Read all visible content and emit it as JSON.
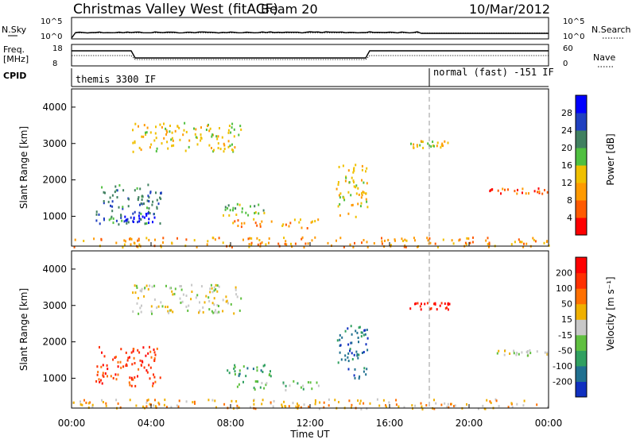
{
  "header": {
    "title": "Christmas Valley West (fitACF)",
    "beam": "Beam 20",
    "date": "10/Mar/2012"
  },
  "strips": {
    "nsky": {
      "label": "N.Sky",
      "ticks": [
        "10^5",
        "10^0"
      ]
    },
    "nsearch": {
      "label": "N.Search",
      "ticks": [
        "10^5",
        "10^0"
      ]
    },
    "freq": {
      "label_top": "Freq.",
      "label_bottom": "[MHz]",
      "ticks": [
        "18",
        "8"
      ]
    },
    "nave": {
      "label": "Nave",
      "ticks": [
        "60",
        "0"
      ]
    },
    "cpid": {
      "label": "CPID",
      "programs": [
        "themis 3300 IF",
        "normal (fast) -151 IF"
      ]
    }
  },
  "time_axis": {
    "label": "Time UT",
    "ticks": [
      "00:00",
      "04:00",
      "08:00",
      "12:00",
      "16:00",
      "20:00",
      "00:00"
    ]
  },
  "chart_data": [
    {
      "type": "heatmap",
      "panel": "power",
      "ylabel": "Slant Range [km]",
      "yticks": [
        1000,
        2000,
        3000,
        4000
      ],
      "xlim": [
        0,
        24
      ],
      "ylim": [
        180,
        4500
      ],
      "colorbar": {
        "label": "Power [dB]",
        "ticks": [
          "28",
          "24",
          "20",
          "16",
          "12",
          "8",
          "4"
        ],
        "colors": [
          "#ff0000",
          "#ff5a00",
          "#ff9a00",
          "#f0c000",
          "#50c040",
          "#408060",
          "#2040c0",
          "#0000ff"
        ]
      },
      "regions": [
        {
          "t": [
            1.2,
            4.5
          ],
          "r": [
            800,
            1900
          ],
          "level": 5
        },
        {
          "t": [
            2.6,
            4.2
          ],
          "r": [
            850,
            1150
          ],
          "level": 7
        },
        {
          "t": [
            3.0,
            8.5
          ],
          "r": [
            2800,
            3600
          ],
          "level": 3
        },
        {
          "t": [
            7.6,
            10.0
          ],
          "r": [
            1050,
            1400
          ],
          "level": 4
        },
        {
          "t": [
            8.0,
            12.5
          ],
          "r": [
            700,
            950
          ],
          "level": 2
        },
        {
          "t": [
            13.3,
            14.9
          ],
          "r": [
            1000,
            2500
          ],
          "level": 3
        },
        {
          "t": [
            17.0,
            19.0
          ],
          "r": [
            2900,
            3100
          ],
          "level": 3
        },
        {
          "t": [
            21.0,
            24.0
          ],
          "r": [
            1650,
            1800
          ],
          "level": 1
        },
        {
          "t": [
            0.0,
            24.0
          ],
          "r": [
            180,
            450
          ],
          "level": 2
        }
      ]
    },
    {
      "type": "heatmap",
      "panel": "velocity",
      "ylabel": "Slant Range [km]",
      "yticks": [
        1000,
        2000,
        3000,
        4000
      ],
      "xlim": [
        0,
        24
      ],
      "ylim": [
        180,
        4500
      ],
      "colorbar": {
        "label": "Velocity [m s⁻¹]",
        "ticks": [
          "200",
          "100",
          "50",
          "15",
          "-15",
          "-50",
          "-100",
          "-200"
        ],
        "colors": [
          "#1030c0",
          "#207090",
          "#30a060",
          "#60c040",
          "#c8c8c8",
          "#f0b000",
          "#ff7000",
          "#ff3000",
          "#ff0000"
        ]
      },
      "regions": [
        {
          "t": [
            1.2,
            4.5
          ],
          "r": [
            800,
            1900
          ],
          "level": 7
        },
        {
          "t": [
            3.0,
            8.5
          ],
          "r": [
            2800,
            3600
          ],
          "level": 4
        },
        {
          "t": [
            7.6,
            10.0
          ],
          "r": [
            1050,
            1400
          ],
          "level": 2
        },
        {
          "t": [
            8.0,
            12.5
          ],
          "r": [
            700,
            950
          ],
          "level": 3
        },
        {
          "t": [
            13.3,
            14.9
          ],
          "r": [
            1000,
            2500
          ],
          "level": 1
        },
        {
          "t": [
            17.0,
            19.0
          ],
          "r": [
            2900,
            3100
          ],
          "level": 8
        },
        {
          "t": [
            21.0,
            24.0
          ],
          "r": [
            1650,
            1800
          ],
          "level": 4
        },
        {
          "t": [
            0.0,
            24.0
          ],
          "r": [
            180,
            450
          ],
          "level": 5
        }
      ]
    }
  ]
}
